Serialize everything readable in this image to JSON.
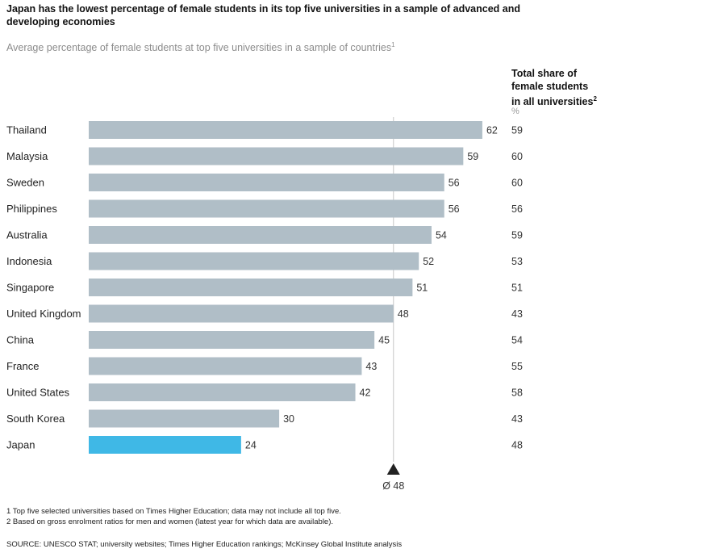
{
  "title": "Japan has the lowest percentage of female students in its top five universities in a sample of advanced and developing economies",
  "subtitle": "Average percentage of female students at top five universities in a sample of countries",
  "subtitle_note": "1",
  "right_column": {
    "heading_lines": [
      "Total share of",
      "female students",
      "in all universities"
    ],
    "heading_note": "2",
    "unit": "%"
  },
  "colors": {
    "bar": "#b0bec7",
    "highlight": "#3fb8e6",
    "refline": "#c8c8c8",
    "marker": "#222222"
  },
  "chart_data": {
    "type": "bar",
    "orientation": "horizontal",
    "title": "Japan has the lowest percentage of female students in its top five universities in a sample of advanced and developing economies",
    "xlabel": "",
    "ylabel": "",
    "xlim": [
      0,
      62
    ],
    "grid": false,
    "categories": [
      "Thailand",
      "Malaysia",
      "Sweden",
      "Philippines",
      "Australia",
      "Indonesia",
      "Singapore",
      "United Kingdom",
      "China",
      "France",
      "United States",
      "South Korea",
      "Japan"
    ],
    "series": [
      {
        "name": "Average percentage of female students at top five universities",
        "values": [
          62,
          59,
          56,
          56,
          54,
          52,
          51,
          48,
          45,
          43,
          42,
          30,
          24
        ]
      },
      {
        "name": "Total share of female students in all universities (%)",
        "values": [
          59,
          60,
          60,
          56,
          59,
          53,
          51,
          43,
          54,
          55,
          58,
          43,
          48
        ]
      }
    ],
    "highlight_category": "Japan",
    "reference_line": {
      "value": 48,
      "label": "Ø 48"
    }
  },
  "footnotes": [
    "1  Top five selected universities based on Times Higher Education; data may not include all top five.",
    "2  Based on gross enrolment ratios for men and women (latest year for which data are available)."
  ],
  "source": "SOURCE:  UNESCO STAT; university websites; Times Higher Education rankings; McKinsey Global Institute analysis"
}
